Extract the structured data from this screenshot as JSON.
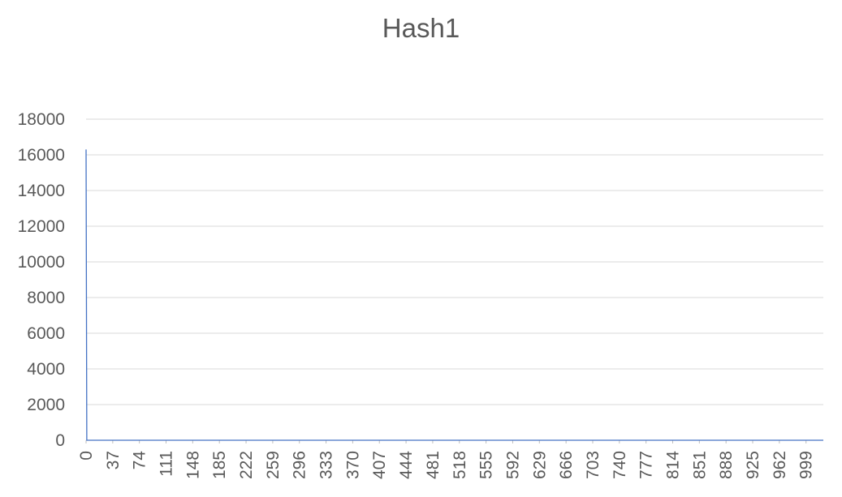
{
  "chart_data": {
    "type": "line",
    "title": "Hash1",
    "xlabel": "",
    "ylabel": "",
    "ylim": [
      0,
      18000
    ],
    "xlim": [
      0,
      1023
    ],
    "y_ticks": [
      0,
      2000,
      4000,
      6000,
      8000,
      10000,
      12000,
      14000,
      16000,
      18000
    ],
    "x_tick_labels": [
      "0",
      "37",
      "74",
      "111",
      "148",
      "185",
      "222",
      "259",
      "296",
      "333",
      "370",
      "407",
      "444",
      "481",
      "518",
      "555",
      "592",
      "629",
      "666",
      "703",
      "740",
      "777",
      "814",
      "851",
      "888",
      "925",
      "962",
      "999"
    ],
    "x_tick_step": 37,
    "grid": true,
    "legend": "none",
    "series": [
      {
        "color": "#4472C4",
        "points": [
          [
            0,
            16300
          ],
          [
            1,
            0
          ],
          [
            1023,
            0
          ]
        ]
      }
    ]
  },
  "colors": {
    "line": "#4472C4",
    "grid": "#D9D9D9",
    "axis": "#BFBFBF",
    "text": "#595959"
  }
}
